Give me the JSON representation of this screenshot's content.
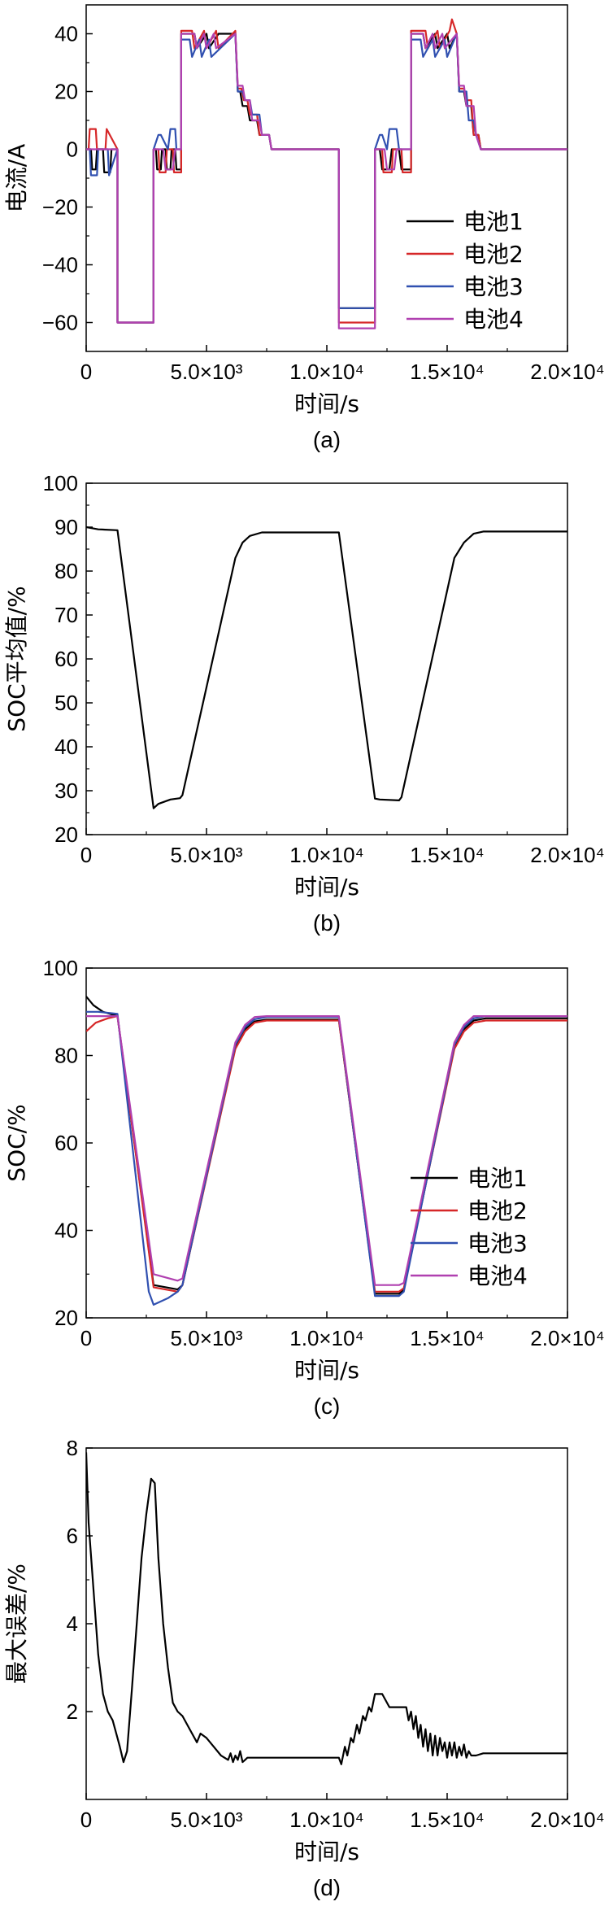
{
  "chart_data": [
    {
      "id": "a",
      "type": "line",
      "panel_label": "(a)",
      "xlabel": "时间/s",
      "ylabel": "电流/A",
      "xlim": [
        0,
        20000
      ],
      "ylim": [
        -70,
        50
      ],
      "xticks": [
        0,
        5000,
        10000,
        15000,
        20000
      ],
      "xtick_labels": [
        "0",
        "5.0×10³",
        "1.0×10⁴",
        "1.5×10⁴",
        "2.0×10⁴"
      ],
      "yticks": [
        -60,
        -40,
        -20,
        0,
        20,
        40
      ],
      "ytick_labels": [
        "−60",
        "−40",
        "−20",
        "0",
        "20",
        "40"
      ],
      "legend": "lower-right",
      "series": [
        {
          "name": "电池1",
          "color": "#000000",
          "x": [
            0,
            200,
            250,
            400,
            450,
            700,
            750,
            1000,
            1050,
            1300,
            1300,
            2800,
            2800,
            2900,
            2950,
            3100,
            3150,
            3300,
            3350,
            3500,
            3550,
            3700,
            3750,
            3950,
            3950,
            4500,
            4600,
            5000,
            5100,
            5500,
            5600,
            6200,
            6300,
            6400,
            6500,
            6700,
            6800,
            7100,
            7200,
            7600,
            7700,
            10500,
            10500,
            12000,
            12000,
            12200,
            12300,
            12600,
            12700,
            13000,
            13100,
            13500,
            13500,
            14000,
            14100,
            14500,
            14600,
            15000,
            15100,
            15400,
            15500,
            15700,
            15800,
            16000,
            16100,
            16300,
            16400,
            20000
          ],
          "y": [
            0,
            0,
            -7,
            -7,
            0,
            0,
            -8,
            -8,
            0,
            0,
            -60,
            -60,
            0,
            0,
            -7,
            -7,
            0,
            0,
            -7,
            -7,
            0,
            0,
            -7,
            -7,
            40,
            40,
            35,
            40,
            35,
            40,
            40,
            40,
            20,
            20,
            15,
            15,
            10,
            10,
            5,
            5,
            0,
            0,
            -55,
            -55,
            0,
            0,
            -7,
            -7,
            0,
            0,
            -7,
            -7,
            40,
            40,
            35,
            40,
            35,
            40,
            35,
            40,
            20,
            20,
            15,
            15,
            5,
            5,
            0,
            0
          ]
        },
        {
          "name": "电池2",
          "color": "#d62728",
          "x": [
            0,
            100,
            150,
            400,
            450,
            800,
            850,
            1300,
            1300,
            2800,
            2800,
            3000,
            3050,
            3300,
            3350,
            3600,
            3650,
            3950,
            3950,
            4400,
            4500,
            4900,
            5000,
            5400,
            5500,
            6200,
            6300,
            6450,
            6550,
            6700,
            6800,
            7100,
            7200,
            7600,
            7700,
            10500,
            10500,
            12000,
            12000,
            12300,
            12350,
            12700,
            12750,
            13100,
            13150,
            13500,
            13500,
            14100,
            14200,
            14600,
            14700,
            15100,
            15200,
            15400,
            15500,
            15700,
            15800,
            16000,
            16100,
            16300,
            16400,
            20000
          ],
          "y": [
            0,
            0,
            7,
            7,
            0,
            0,
            7,
            0,
            -60,
            -60,
            0,
            0,
            -8,
            -8,
            0,
            0,
            -8,
            -8,
            41,
            41,
            35,
            41,
            35,
            41,
            35,
            41,
            21,
            21,
            17,
            17,
            12,
            12,
            5,
            5,
            0,
            0,
            -60,
            -60,
            0,
            0,
            -8,
            -8,
            0,
            0,
            -8,
            -8,
            41,
            41,
            35,
            41,
            35,
            41,
            45,
            40,
            21,
            21,
            17,
            17,
            5,
            5,
            0,
            0
          ]
        },
        {
          "name": "电池3",
          "color": "#3050b0",
          "x": [
            0,
            150,
            200,
            450,
            500,
            900,
            950,
            1300,
            1300,
            2800,
            2800,
            3000,
            3100,
            3400,
            3500,
            3700,
            3750,
            3950,
            3950,
            4300,
            4400,
            4700,
            4800,
            5100,
            5200,
            6200,
            6300,
            6500,
            6600,
            6800,
            6900,
            7200,
            7300,
            7600,
            7700,
            10500,
            10500,
            12000,
            12000,
            12200,
            12300,
            12500,
            12600,
            12900,
            13000,
            13500,
            13500,
            13900,
            14000,
            14400,
            14500,
            14900,
            15000,
            15400,
            15500,
            15800,
            15900,
            16100,
            16200,
            16400,
            20000
          ],
          "y": [
            0,
            0,
            -9,
            -9,
            0,
            0,
            -9,
            0,
            -60,
            -60,
            0,
            5,
            5,
            0,
            7,
            7,
            0,
            0,
            38,
            38,
            32,
            38,
            32,
            38,
            32,
            40,
            20,
            20,
            17,
            17,
            12,
            12,
            5,
            5,
            0,
            0,
            -55,
            -55,
            0,
            5,
            5,
            0,
            7,
            7,
            0,
            0,
            38,
            38,
            32,
            38,
            32,
            38,
            32,
            40,
            20,
            20,
            10,
            10,
            5,
            0,
            0
          ]
        },
        {
          "name": "电池4",
          "color": "#b040b0",
          "x": [
            0,
            1300,
            1300,
            2800,
            2800,
            3200,
            3300,
            3600,
            3700,
            3950,
            3950,
            4500,
            4600,
            4900,
            5000,
            5300,
            5400,
            6200,
            6300,
            6500,
            6600,
            6800,
            6900,
            7200,
            7300,
            7600,
            7700,
            10500,
            10500,
            12000,
            12000,
            12400,
            12500,
            12800,
            12900,
            13500,
            13500,
            14000,
            14100,
            14400,
            14500,
            14800,
            14900,
            15400,
            15500,
            15700,
            15800,
            16100,
            16200,
            16400,
            20000
          ],
          "y": [
            0,
            0,
            -60,
            -60,
            0,
            0,
            -7,
            -7,
            0,
            0,
            40,
            40,
            35,
            40,
            35,
            40,
            35,
            40,
            22,
            22,
            17,
            17,
            10,
            10,
            5,
            5,
            0,
            0,
            -62,
            -62,
            0,
            0,
            -7,
            -7,
            0,
            0,
            40,
            40,
            35,
            40,
            35,
            40,
            35,
            40,
            22,
            22,
            15,
            15,
            5,
            0,
            0
          ]
        }
      ]
    },
    {
      "id": "b",
      "type": "line",
      "panel_label": "(b)",
      "xlabel": "时间/s",
      "ylabel": "SOC平均值/%",
      "xlim": [
        0,
        20000
      ],
      "ylim": [
        20,
        100
      ],
      "xticks": [
        0,
        5000,
        10000,
        15000,
        20000
      ],
      "xtick_labels": [
        "0",
        "5.0×10³",
        "1.0×10⁴",
        "1.5×10⁴",
        "2.0×10⁴"
      ],
      "yticks": [
        20,
        30,
        40,
        50,
        60,
        70,
        80,
        90,
        100
      ],
      "ytick_labels": [
        "20",
        "30",
        "40",
        "50",
        "60",
        "70",
        "80",
        "90",
        "100"
      ],
      "series": [
        {
          "color": "#000000",
          "x": [
            0,
            200,
            500,
            1300,
            2800,
            3000,
            3500,
            3900,
            4000,
            6200,
            6500,
            6800,
            7300,
            10500,
            12000,
            12200,
            13000,
            13100,
            15300,
            15700,
            16100,
            16500,
            20000
          ],
          "y": [
            90,
            89.8,
            89.5,
            89.3,
            26,
            27,
            28,
            28.3,
            29,
            83,
            86.5,
            88,
            88.8,
            88.8,
            28.2,
            28,
            27.8,
            28.5,
            83,
            86.5,
            88.5,
            89,
            89
          ]
        }
      ]
    },
    {
      "id": "c",
      "type": "line",
      "panel_label": "(c)",
      "xlabel": "时间/s",
      "ylabel": "SOC/%",
      "xlim": [
        0,
        20000
      ],
      "ylim": [
        20,
        100
      ],
      "xticks": [
        0,
        5000,
        10000,
        15000,
        20000
      ],
      "xtick_labels": [
        "0",
        "5.0×10³",
        "1.0×10⁴",
        "1.5×10⁴",
        "2.0×10⁴"
      ],
      "yticks": [
        20,
        40,
        60,
        80,
        100
      ],
      "ytick_labels": [
        "20",
        "40",
        "60",
        "80",
        "100"
      ],
      "legend": "lower-right",
      "series": [
        {
          "name": "电池1",
          "color": "#000000",
          "x": [
            0,
            300,
            700,
            1300,
            2800,
            3800,
            4000,
            6200,
            6600,
            7000,
            7500,
            10500,
            12000,
            13000,
            13200,
            15300,
            15700,
            16100,
            16600,
            20000
          ],
          "y": [
            93.5,
            91.5,
            90,
            89,
            27.5,
            26.5,
            27.5,
            82,
            86,
            87.8,
            88.2,
            88.2,
            25.5,
            25.5,
            26.5,
            82,
            86,
            88,
            88.5,
            88.5
          ]
        },
        {
          "name": "电池2",
          "color": "#d62728",
          "x": [
            0,
            400,
            900,
            1300,
            2800,
            3800,
            4000,
            6200,
            6600,
            7000,
            7500,
            10500,
            12000,
            13000,
            13200,
            15300,
            15700,
            16100,
            16600,
            20000
          ],
          "y": [
            85.5,
            87.5,
            88.5,
            89,
            27,
            26,
            27.5,
            81.5,
            85.5,
            87.5,
            88,
            88,
            26,
            26,
            26.8,
            81.5,
            85.5,
            87.5,
            88,
            88
          ]
        },
        {
          "name": "电池3",
          "color": "#3050b0",
          "x": [
            0,
            500,
            1000,
            1300,
            2600,
            2800,
            3400,
            3800,
            4000,
            6200,
            6600,
            7000,
            7500,
            10500,
            12000,
            13000,
            13200,
            15300,
            15700,
            16100,
            16600,
            20000
          ],
          "y": [
            90,
            90,
            89.7,
            89.5,
            26,
            23,
            24.5,
            26,
            27.5,
            82.5,
            86.5,
            88.3,
            88.8,
            88.8,
            25,
            25,
            26,
            82.5,
            86.5,
            88.5,
            89,
            89
          ]
        },
        {
          "name": "电池4",
          "color": "#b040b0",
          "x": [
            0,
            500,
            1000,
            1300,
            2800,
            3800,
            4000,
            6200,
            6600,
            7000,
            7500,
            10500,
            12000,
            13000,
            13200,
            15300,
            15700,
            16100,
            16600,
            20000
          ],
          "y": [
            89,
            89,
            89,
            89,
            30,
            28.5,
            29,
            83,
            87,
            88.8,
            89,
            89,
            27.5,
            27.5,
            28,
            83,
            87,
            89,
            89,
            89
          ]
        }
      ]
    },
    {
      "id": "d",
      "type": "line",
      "panel_label": "(d)",
      "xlabel": "时间/s",
      "ylabel": "最大误差/%",
      "xlim": [
        0,
        20000
      ],
      "ylim": [
        0,
        8
      ],
      "xticks": [
        0,
        5000,
        10000,
        15000,
        20000
      ],
      "xtick_labels": [
        "0",
        "5.0×10³",
        "1.0×10⁴",
        "1.5×10⁴",
        "2.0×10⁴"
      ],
      "yticks": [
        2,
        4,
        6,
        8
      ],
      "ytick_labels": [
        "2",
        "4",
        "6",
        "8"
      ],
      "series": [
        {
          "color": "#000000",
          "x": [
            0,
            100,
            300,
            500,
            700,
            900,
            1100,
            1300,
            1400,
            1550,
            1700,
            1900,
            2100,
            2300,
            2500,
            2700,
            2850,
            3000,
            3200,
            3400,
            3600,
            3800,
            4000,
            4300,
            4600,
            4750,
            5000,
            5300,
            5600,
            5900,
            6000,
            6100,
            6200,
            6300,
            6400,
            6500,
            6600,
            6700,
            6900,
            7200,
            7600,
            10300,
            10500,
            10600,
            10750,
            10850,
            11000,
            11100,
            11250,
            11350,
            11500,
            11600,
            11750,
            11850,
            12000,
            12300,
            12600,
            13300,
            13400,
            13500,
            13600,
            13700,
            13800,
            13900,
            14000,
            14100,
            14200,
            14300,
            14400,
            14500,
            14600,
            14700,
            14800,
            14900,
            15000,
            15100,
            15200,
            15300,
            15400,
            15500,
            15600,
            15700,
            15800,
            15900,
            16000,
            16200,
            16500,
            20000
          ],
          "y": [
            7.9,
            6.3,
            4.8,
            3.3,
            2.4,
            2.0,
            1.8,
            1.4,
            1.2,
            0.85,
            1.1,
            2.5,
            4.0,
            5.5,
            6.5,
            7.3,
            7.2,
            5.5,
            4.0,
            3.0,
            2.2,
            2.0,
            1.9,
            1.6,
            1.3,
            1.5,
            1.4,
            1.2,
            1.0,
            0.9,
            1.05,
            0.85,
            1.0,
            0.9,
            1.1,
            0.85,
            0.9,
            0.95,
            0.95,
            0.95,
            0.95,
            0.95,
            0.95,
            0.8,
            1.2,
            1.0,
            1.4,
            1.3,
            1.7,
            1.5,
            1.9,
            1.8,
            2.1,
            2.0,
            2.4,
            2.4,
            2.1,
            2.1,
            1.8,
            2.0,
            1.6,
            1.9,
            1.4,
            1.7,
            1.2,
            1.6,
            1.1,
            1.5,
            1.0,
            1.45,
            1.0,
            1.4,
            1.1,
            1.3,
            0.95,
            1.3,
            1.0,
            1.3,
            0.95,
            1.2,
            1.0,
            1.25,
            0.95,
            1.1,
            1.0,
            1.0,
            1.05,
            1.05
          ]
        }
      ]
    }
  ]
}
